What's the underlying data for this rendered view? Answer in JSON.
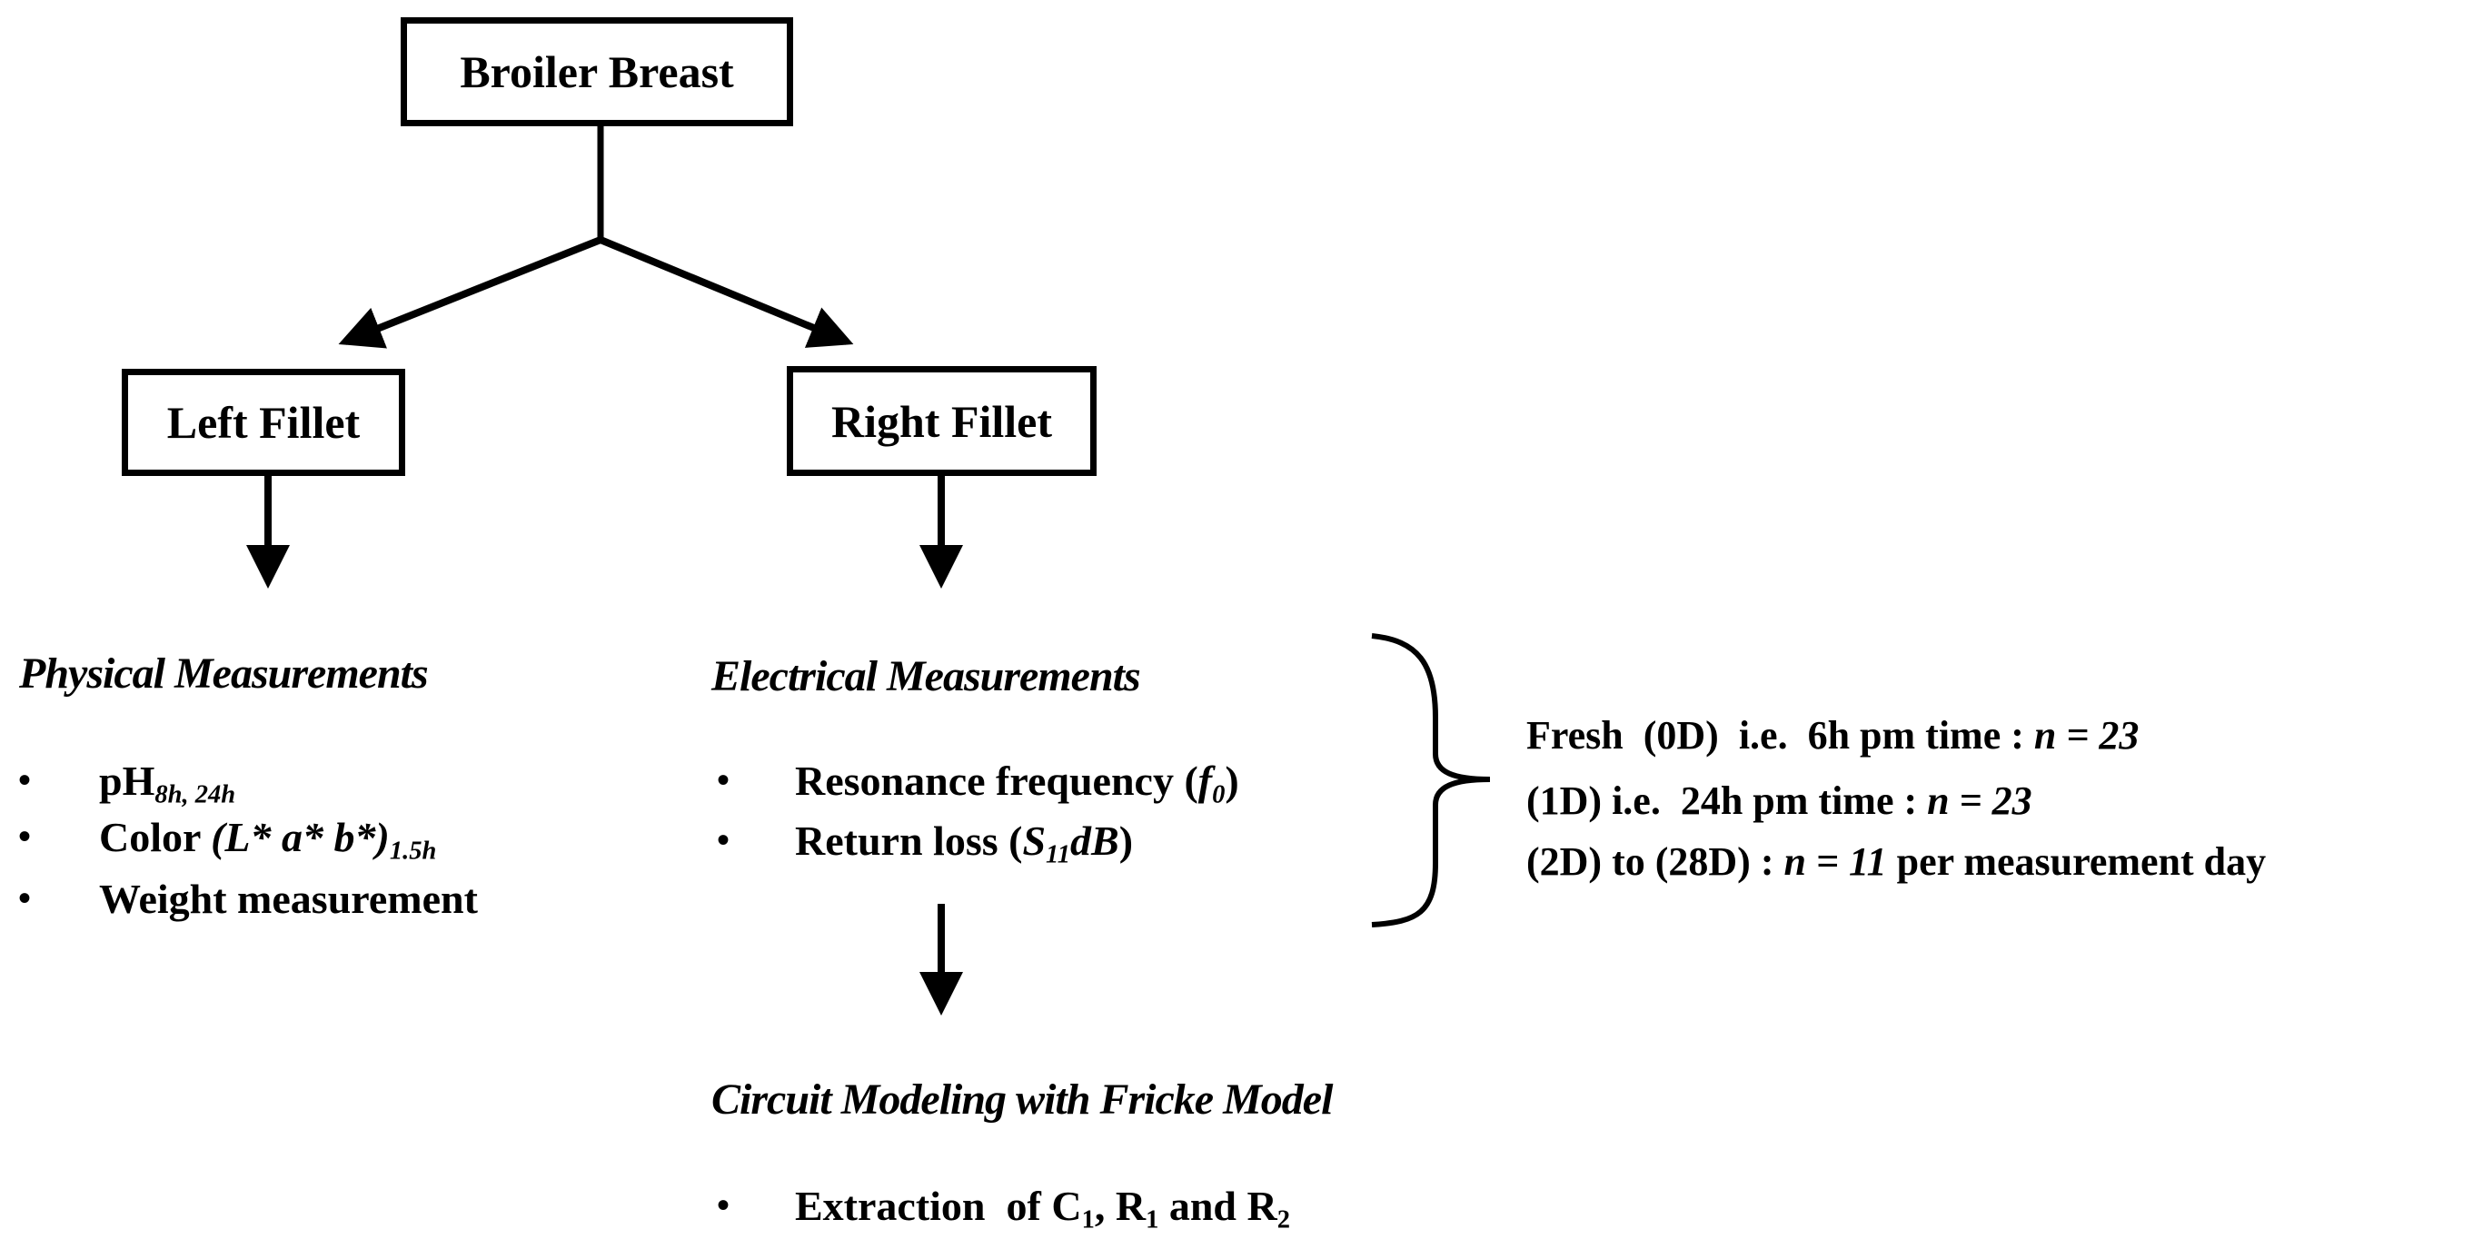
{
  "root": {
    "label": "Broiler Breast"
  },
  "left": {
    "label": "Left Fillet",
    "heading": "Physical Measurements",
    "items": [
      {
        "text": "pH",
        "sub": "8h, 24h"
      },
      {
        "text": "Color ",
        "italic": "(L* a* b*)",
        "sub": "1.5h"
      },
      {
        "text": "Weight measurement"
      }
    ]
  },
  "right": {
    "label": "Right Fillet",
    "heading": "Electrical Measurements",
    "items": [
      {
        "text": "Resonance frequency (",
        "italic": "f",
        "sub": "0",
        "end": ")"
      },
      {
        "text": "Return loss (",
        "italic": "S",
        "sub": "11",
        "italic2": "dB",
        "end": ")"
      }
    ]
  },
  "samples": [
    {
      "pre": "Fresh  (0D)  i.e.  6h pm time : ",
      "n": "n = 23",
      "post": ""
    },
    {
      "pre": "(1D) i.e.  24h pm time : ",
      "n": "n = 23",
      "post": ""
    },
    {
      "pre": "(2D) to (28D) : ",
      "n": "n = 11",
      "post": " per measurement day"
    }
  ],
  "circuit": {
    "heading": "Circuit Modeling with Fricke Model",
    "item": {
      "a": "Extraction  of C",
      "s1": "1",
      "b": ", R",
      "s2": "1",
      "c": " and R",
      "s3": "2"
    }
  }
}
